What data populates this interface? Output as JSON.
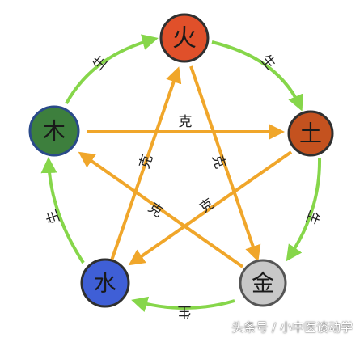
{
  "diagram": {
    "elements": {
      "fire": {
        "glyph": "火",
        "color": "#e0502a"
      },
      "earth": {
        "glyph": "土",
        "color": "#c4521f"
      },
      "metal": {
        "glyph": "金",
        "color": "#c8c8c8"
      },
      "water": {
        "glyph": "水",
        "color": "#3f5fd6"
      },
      "wood": {
        "glyph": "木",
        "color": "#3d7f3d"
      }
    },
    "generate_label": "生",
    "overcome_label": "克",
    "generate_color": "#86d64a",
    "overcome_color": "#f0a62a"
  },
  "watermark": "头条号 / 小中医谈动学"
}
